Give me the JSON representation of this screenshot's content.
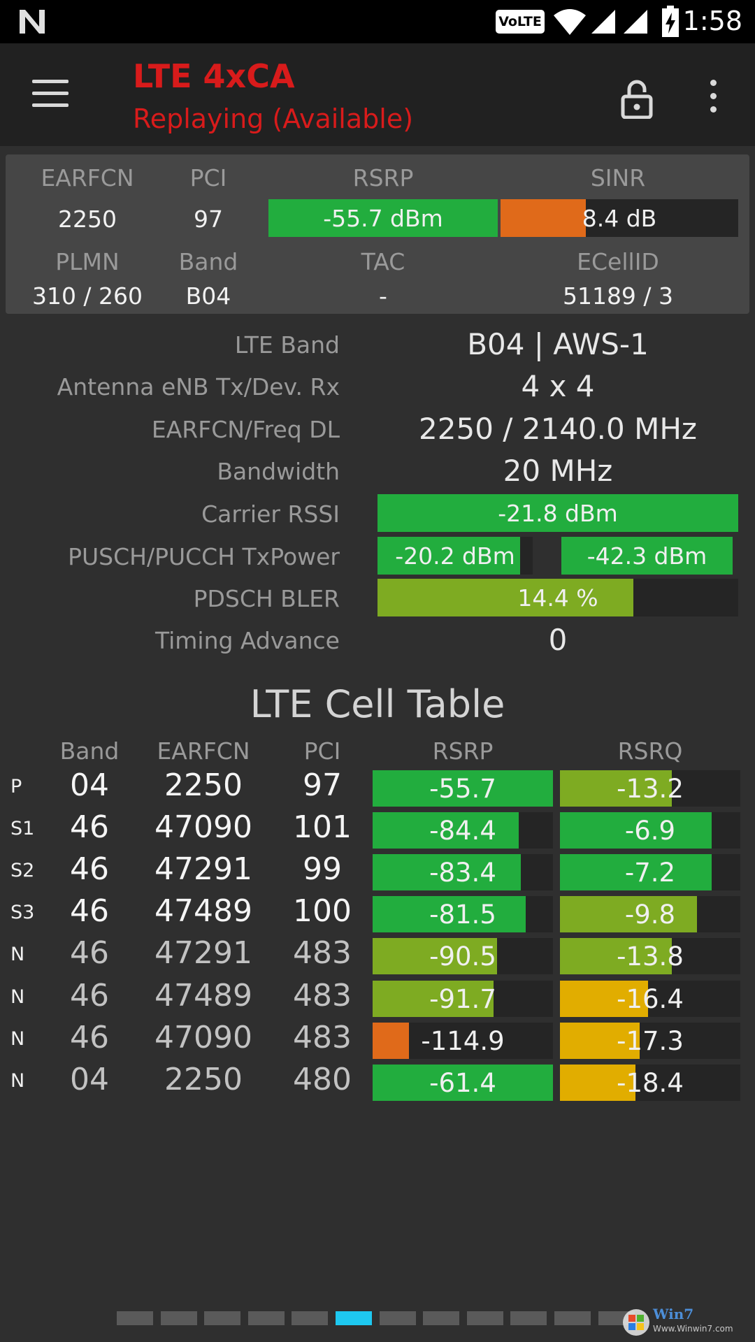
{
  "status_bar": {
    "time": "1:58",
    "volte_badge": "VoLTE",
    "icons": [
      "n-logo-icon",
      "volte-icon",
      "wifi-icon",
      "signal-icon",
      "signal-icon",
      "battery-charging-icon"
    ]
  },
  "toolbar": {
    "title": "LTE 4xCA",
    "subtitle": "Replaying (Available)",
    "icons": [
      "menu-icon",
      "lock-icon",
      "overflow-menu-icon"
    ]
  },
  "summary": {
    "headers": {
      "earfcn": "EARFCN",
      "pci": "PCI",
      "rsrp": "RSRP",
      "sinr": "SINR",
      "plmn": "PLMN",
      "band": "Band",
      "tac": "TAC",
      "ecellid": "ECellID"
    },
    "values": {
      "earfcn": "2250",
      "pci": "97",
      "plmn": "310 / 260",
      "band": "B04",
      "tac": "-",
      "ecellid": "51189 / 3"
    },
    "rsrp": {
      "label": "-55.7 dBm",
      "fill": 1.0,
      "color": "#22ad3e"
    },
    "sinr": {
      "label": "8.4 dB",
      "fill": 0.36,
      "color": "#e06a1a"
    }
  },
  "details": {
    "lte_band_label": "LTE Band",
    "lte_band_value": "B04 | AWS-1",
    "antenna_label": "Antenna eNB Tx/Dev. Rx",
    "antenna_value": "4 x 4",
    "earfcn_freq_label": "EARFCN/Freq DL",
    "earfcn_freq_value": "2250 / 2140.0 MHz",
    "bandwidth_label": "Bandwidth",
    "bandwidth_value": "20 MHz",
    "rssi_label": "Carrier RSSI",
    "rssi": {
      "label": "-21.8 dBm",
      "fill": 1.0,
      "color": "#22ad3e"
    },
    "txpower_label": "PUSCH/PUCCH TxPower",
    "pusch": {
      "label": "-20.2 dBm",
      "fill": 0.92,
      "color": "#22ad3e"
    },
    "pucch": {
      "label": "-42.3 dBm",
      "fill": 1.0,
      "color": "#22ad3e"
    },
    "bler_label": "PDSCH BLER",
    "bler": {
      "label": "14.4 %",
      "fill": 0.71,
      "color": "#7eab22"
    },
    "timing_label": "Timing Advance",
    "timing_value": "0"
  },
  "cell_table": {
    "title": "LTE Cell Table",
    "headers": {
      "band": "Band",
      "earfcn": "EARFCN",
      "pci": "PCI",
      "rsrp": "RSRP",
      "rsrq": "RSRQ"
    },
    "rows": [
      {
        "type": "P",
        "band": "04",
        "earfcn": "2250",
        "pci": "97",
        "rsrp": "-55.7",
        "rsrp_fill": 1.0,
        "rsrp_color": "#22ad3e",
        "rsrq": "-13.2",
        "rsrq_fill": 0.62,
        "rsrq_color": "#7eab22",
        "active": true
      },
      {
        "type": "S1",
        "band": "46",
        "earfcn": "47090",
        "pci": "101",
        "rsrp": "-84.4",
        "rsrp_fill": 0.81,
        "rsrp_color": "#22ad3e",
        "rsrq": "-6.9",
        "rsrq_fill": 0.84,
        "rsrq_color": "#22ad3e",
        "active": true
      },
      {
        "type": "S2",
        "band": "46",
        "earfcn": "47291",
        "pci": "99",
        "rsrp": "-83.4",
        "rsrp_fill": 0.82,
        "rsrp_color": "#22ad3e",
        "rsrq": "-7.2",
        "rsrq_fill": 0.84,
        "rsrq_color": "#22ad3e",
        "active": true
      },
      {
        "type": "S3",
        "band": "46",
        "earfcn": "47489",
        "pci": "100",
        "rsrp": "-81.5",
        "rsrp_fill": 0.85,
        "rsrp_color": "#22ad3e",
        "rsrq": "-9.8",
        "rsrq_fill": 0.76,
        "rsrq_color": "#7eab22",
        "active": true
      },
      {
        "type": "N",
        "band": "46",
        "earfcn": "47291",
        "pci": "483",
        "rsrp": "-90.5",
        "rsrp_fill": 0.69,
        "rsrp_color": "#7eab22",
        "rsrq": "-13.8",
        "rsrq_fill": 0.62,
        "rsrq_color": "#7eab22",
        "active": false
      },
      {
        "type": "N",
        "band": "46",
        "earfcn": "47489",
        "pci": "483",
        "rsrp": "-91.7",
        "rsrp_fill": 0.67,
        "rsrp_color": "#7eab22",
        "rsrq": "-16.4",
        "rsrq_fill": 0.49,
        "rsrq_color": "#e1ad00",
        "active": false
      },
      {
        "type": "N",
        "band": "46",
        "earfcn": "47090",
        "pci": "483",
        "rsrp": "-114.9",
        "rsrp_fill": 0.2,
        "rsrp_color": "#e06a1a",
        "rsrq": "-17.3",
        "rsrq_fill": 0.44,
        "rsrq_color": "#e1ad00",
        "active": false
      },
      {
        "type": "N",
        "band": "04",
        "earfcn": "2250",
        "pci": "480",
        "rsrp": "-61.4",
        "rsrp_fill": 1.0,
        "rsrp_color": "#22ad3e",
        "rsrq": "-18.4",
        "rsrq_fill": 0.42,
        "rsrq_color": "#e1ad00",
        "active": false
      }
    ]
  },
  "page_indicator": {
    "count": 12,
    "active": 5,
    "active_color": "#1ec8f0"
  },
  "watermark": {
    "text": "Win7",
    "url": "Www.Winwin7.com"
  }
}
